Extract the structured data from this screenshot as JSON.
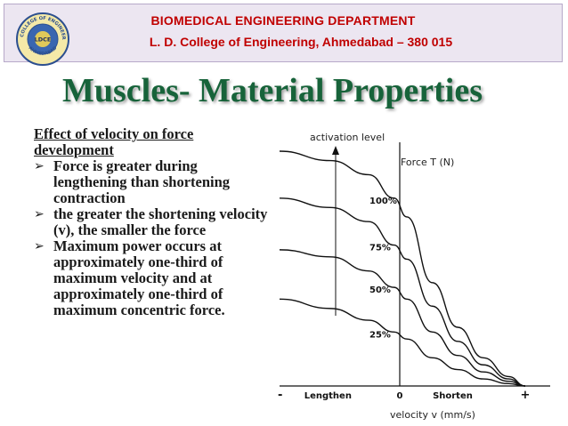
{
  "header": {
    "department": "BIOMEDICAL ENGINEERING DEPARTMENT",
    "college": "L. D. College of Engineering, Ahmedabad – 380 015",
    "logo": {
      "top_text": "L.D. COLLEGE OF ENGINEERING",
      "bottom_text": "AHMEDABAD",
      "center_text": "LDCE"
    }
  },
  "slide": {
    "title": "Muscles- Material Properties",
    "heading": "Effect of velocity on force development",
    "bullets": [
      "Force is greater during lengthening than shortening contraction",
      "the greater the shortening velocity (v), the smaller the force",
      "Maximum power occurs at approximately one-third of maximum velocity and at approximately one-third of maximum concentric force."
    ]
  },
  "chart_data": {
    "type": "line",
    "title": "",
    "xlabel": "velocity v (mm/s)",
    "ylabel": "Force T (N)",
    "y_arrow_label": "activation level",
    "x_tick_labels": [
      "-",
      "Lengthen",
      "0",
      "Shorten",
      "+"
    ],
    "xlim": [
      -1,
      1
    ],
    "ylim": [
      0,
      1
    ],
    "series": [
      {
        "name": "100%",
        "x": [
          -1.0,
          -0.6,
          -0.3,
          -0.1,
          0.0,
          0.2,
          0.4,
          0.6,
          0.8,
          0.93
        ],
        "values": [
          1.0,
          0.96,
          0.9,
          0.8,
          0.72,
          0.44,
          0.25,
          0.12,
          0.04,
          0.0
        ]
      },
      {
        "name": "75%",
        "x": [
          -1.0,
          -0.6,
          -0.3,
          -0.1,
          0.0,
          0.2,
          0.4,
          0.6,
          0.8,
          0.93
        ],
        "values": [
          0.8,
          0.76,
          0.7,
          0.6,
          0.54,
          0.34,
          0.19,
          0.09,
          0.03,
          0.0
        ]
      },
      {
        "name": "50%",
        "x": [
          -1.0,
          -0.6,
          -0.3,
          -0.1,
          0.0,
          0.2,
          0.4,
          0.6,
          0.8,
          0.93
        ],
        "values": [
          0.58,
          0.55,
          0.49,
          0.42,
          0.37,
          0.23,
          0.13,
          0.06,
          0.02,
          0.0
        ]
      },
      {
        "name": "25%",
        "x": [
          -1.0,
          -0.6,
          -0.3,
          -0.1,
          0.0,
          0.2,
          0.4,
          0.6,
          0.8,
          0.93
        ],
        "values": [
          0.37,
          0.33,
          0.28,
          0.23,
          0.2,
          0.12,
          0.07,
          0.03,
          0.01,
          0.0
        ]
      }
    ]
  }
}
